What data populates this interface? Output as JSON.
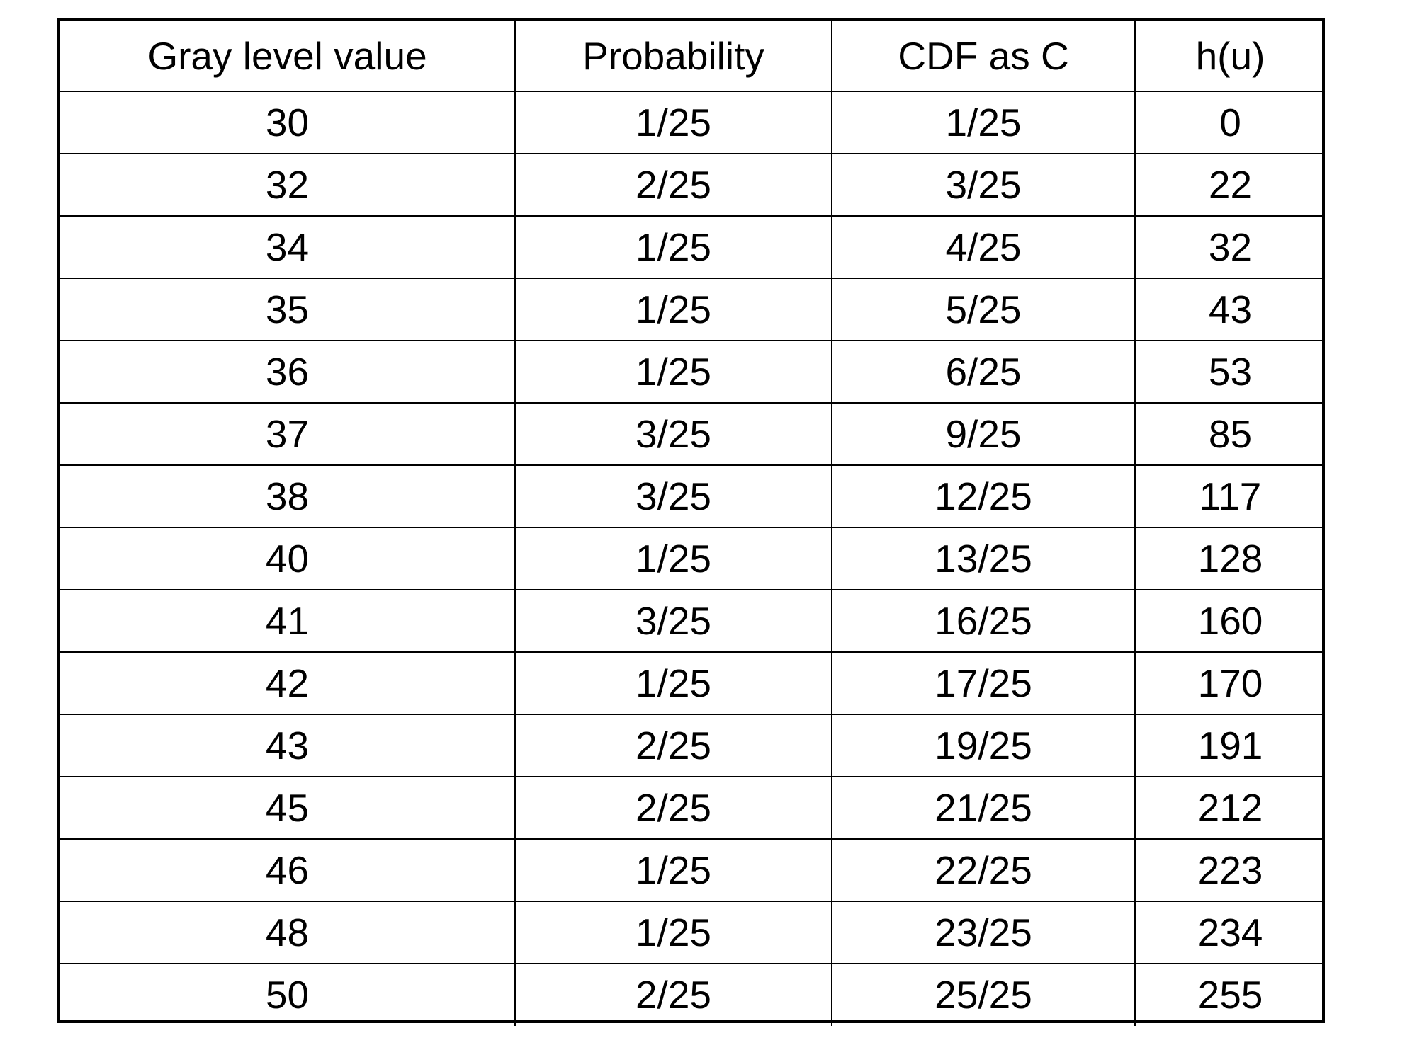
{
  "table": {
    "headers": [
      "Gray level value",
      "Probability",
      "CDF as C",
      "h(u)"
    ],
    "rows": [
      [
        "30",
        "1/25",
        "1/25",
        "0"
      ],
      [
        "32",
        "2/25",
        "3/25",
        "22"
      ],
      [
        "34",
        "1/25",
        "4/25",
        "32"
      ],
      [
        "35",
        "1/25",
        "5/25",
        "43"
      ],
      [
        "36",
        "1/25",
        "6/25",
        "53"
      ],
      [
        "37",
        "3/25",
        "9/25",
        "85"
      ],
      [
        "38",
        "3/25",
        "12/25",
        "117"
      ],
      [
        "40",
        "1/25",
        "13/25",
        "128"
      ],
      [
        "41",
        "3/25",
        "16/25",
        "160"
      ],
      [
        "42",
        "1/25",
        "17/25",
        "170"
      ],
      [
        "43",
        "2/25",
        "19/25",
        "191"
      ],
      [
        "45",
        "2/25",
        "21/25",
        "212"
      ],
      [
        "46",
        "1/25",
        "22/25",
        "223"
      ],
      [
        "48",
        "1/25",
        "23/25",
        "234"
      ],
      [
        "50",
        "2/25",
        "25/25",
        "255"
      ]
    ]
  }
}
